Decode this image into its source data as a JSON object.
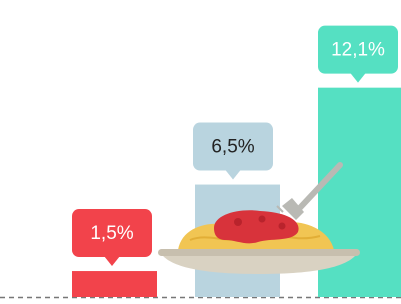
{
  "chart_data": {
    "type": "bar",
    "categories": [
      null,
      null,
      null
    ],
    "values": [
      1.5,
      6.5,
      12.1
    ],
    "value_labels": [
      "1,5%",
      "6,5%",
      "12,1%"
    ],
    "colors": [
      "#f2434b",
      "#b9d4df",
      "#55e0c2"
    ]
  }
}
